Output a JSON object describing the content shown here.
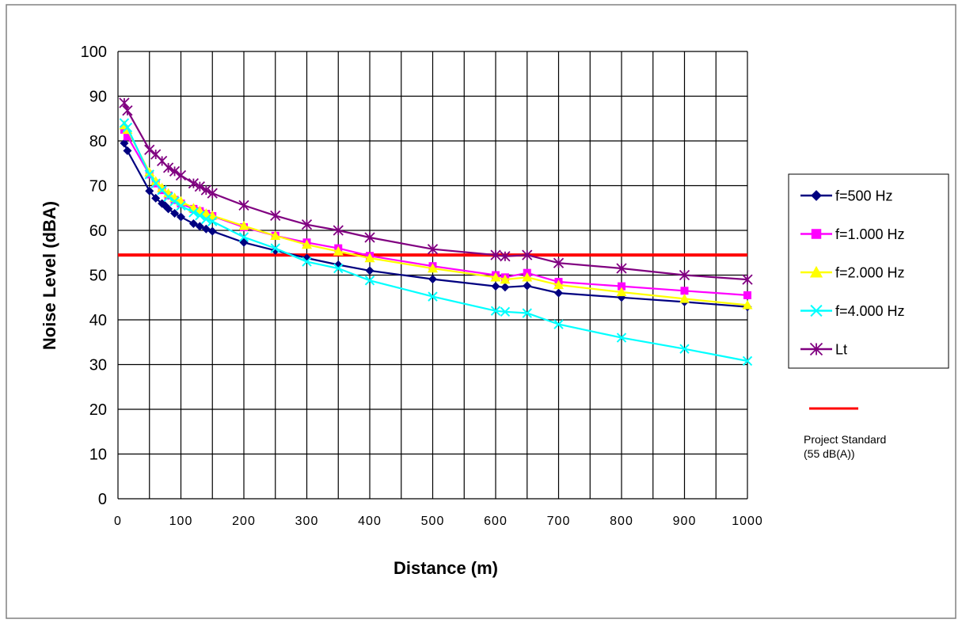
{
  "chart_data": {
    "type": "line",
    "title": "",
    "xlabel": "Distance (m)",
    "ylabel": "Noise Level (dBA)",
    "xlim": [
      0,
      1000
    ],
    "ylim": [
      0,
      100
    ],
    "xticks": [
      0,
      100,
      200,
      300,
      400,
      500,
      600,
      700,
      800,
      900,
      1000
    ],
    "yticks": [
      0,
      10,
      20,
      30,
      40,
      50,
      60,
      70,
      80,
      90,
      100
    ],
    "x_grid_step": 50,
    "grid": true,
    "legend_position": "right",
    "series": [
      {
        "name": "f=500 Hz",
        "color": "#000080",
        "marker": "diamond",
        "points": [
          [
            10,
            79.5
          ],
          [
            15,
            77.8
          ],
          [
            50,
            68.8
          ],
          [
            60,
            67.2
          ],
          [
            70,
            66.0
          ],
          [
            75,
            65.5
          ],
          [
            80,
            64.8
          ],
          [
            90,
            63.8
          ],
          [
            100,
            63.0
          ],
          [
            120,
            61.5
          ],
          [
            130,
            60.9
          ],
          [
            140,
            60.3
          ],
          [
            150,
            59.8
          ],
          [
            200,
            57.3
          ],
          [
            250,
            55.5
          ],
          [
            300,
            53.8
          ],
          [
            350,
            52.3
          ],
          [
            400,
            51.0
          ],
          [
            500,
            49.1
          ],
          [
            600,
            47.5
          ],
          [
            615,
            47.3
          ],
          [
            650,
            47.6
          ],
          [
            700,
            46.0
          ],
          [
            800,
            45.0
          ],
          [
            900,
            44.0
          ],
          [
            1000,
            42.9
          ]
        ]
      },
      {
        "name": "f=1.000 Hz",
        "color": "#FF00FF",
        "marker": "square",
        "points": [
          [
            10,
            82.5
          ],
          [
            15,
            81.0
          ],
          [
            50,
            72.5
          ],
          [
            60,
            70.5
          ],
          [
            70,
            69.0
          ],
          [
            80,
            67.8
          ],
          [
            90,
            66.8
          ],
          [
            100,
            66.0
          ],
          [
            120,
            64.8
          ],
          [
            130,
            64.3
          ],
          [
            140,
            63.7
          ],
          [
            150,
            63.2
          ],
          [
            200,
            60.7
          ],
          [
            250,
            58.8
          ],
          [
            300,
            57.3
          ],
          [
            350,
            56.0
          ],
          [
            400,
            54.3
          ],
          [
            500,
            52.0
          ],
          [
            600,
            50.0
          ],
          [
            615,
            49.5
          ],
          [
            650,
            50.5
          ],
          [
            700,
            48.5
          ],
          [
            800,
            47.5
          ],
          [
            900,
            46.5
          ],
          [
            1000,
            45.5
          ]
        ]
      },
      {
        "name": "f=2.000 Hz",
        "color": "#FFFF00",
        "marker": "triangle",
        "points": [
          [
            10,
            83.5
          ],
          [
            15,
            82.5
          ],
          [
            50,
            73.0
          ],
          [
            60,
            71.0
          ],
          [
            70,
            69.5
          ],
          [
            80,
            68.3
          ],
          [
            90,
            67.3
          ],
          [
            100,
            66.5
          ],
          [
            120,
            65.0
          ],
          [
            130,
            64.4
          ],
          [
            140,
            63.8
          ],
          [
            150,
            63.3
          ],
          [
            200,
            61.0
          ],
          [
            250,
            58.8
          ],
          [
            300,
            56.8
          ],
          [
            350,
            55.3
          ],
          [
            400,
            53.8
          ],
          [
            500,
            51.5
          ],
          [
            600,
            49.5
          ],
          [
            615,
            49.0
          ],
          [
            650,
            49.5
          ],
          [
            700,
            47.8
          ],
          [
            800,
            46.2
          ],
          [
            900,
            44.7
          ],
          [
            1000,
            43.3
          ]
        ]
      },
      {
        "name": "f=4.000 Hz",
        "color": "#00FFFF",
        "marker": "x",
        "points": [
          [
            10,
            84.0
          ],
          [
            15,
            83.0
          ],
          [
            50,
            72.5
          ],
          [
            60,
            70.5
          ],
          [
            70,
            69.0
          ],
          [
            80,
            67.5
          ],
          [
            90,
            66.5
          ],
          [
            100,
            65.5
          ],
          [
            120,
            64.0
          ],
          [
            130,
            63.3
          ],
          [
            140,
            62.5
          ],
          [
            150,
            62.0
          ],
          [
            200,
            58.5
          ],
          [
            250,
            56.0
          ],
          [
            300,
            53.0
          ],
          [
            350,
            51.5
          ],
          [
            400,
            48.8
          ],
          [
            500,
            45.2
          ],
          [
            600,
            42.0
          ],
          [
            615,
            41.8
          ],
          [
            650,
            41.5
          ],
          [
            700,
            39.0
          ],
          [
            800,
            36.0
          ],
          [
            900,
            33.5
          ],
          [
            1000,
            30.8
          ]
        ]
      },
      {
        "name": "Lt",
        "color": "#800080",
        "marker": "star",
        "points": [
          [
            10,
            88.5
          ],
          [
            15,
            86.8
          ],
          [
            50,
            78.0
          ],
          [
            60,
            77.0
          ],
          [
            70,
            75.5
          ],
          [
            80,
            74.0
          ],
          [
            90,
            73.2
          ],
          [
            100,
            72.3
          ],
          [
            120,
            70.5
          ],
          [
            130,
            69.8
          ],
          [
            140,
            69.0
          ],
          [
            150,
            68.3
          ],
          [
            200,
            65.6
          ],
          [
            250,
            63.3
          ],
          [
            300,
            61.3
          ],
          [
            350,
            60.0
          ],
          [
            400,
            58.4
          ],
          [
            500,
            55.8
          ],
          [
            600,
            54.5
          ],
          [
            615,
            54.2
          ],
          [
            650,
            54.5
          ],
          [
            700,
            52.7
          ],
          [
            800,
            51.5
          ],
          [
            900,
            50.0
          ],
          [
            1000,
            49.0
          ]
        ]
      }
    ],
    "reference_line": {
      "name": "Project Standard",
      "name_line2": "(55 dB(A))",
      "value": 54.5,
      "color": "#FF0000"
    }
  }
}
